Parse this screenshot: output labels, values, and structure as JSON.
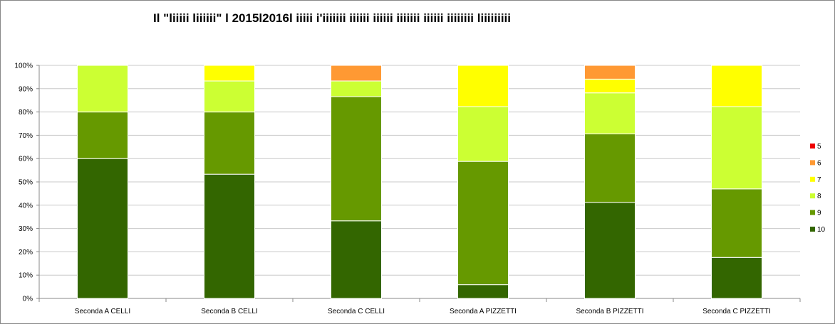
{
  "chart_data": {
    "type": "bar",
    "stacked": true,
    "percent": true,
    "title": "Il \"liiiii liiiiii\" l 2015l2016l iiiii i'iiiiiii iiiiii iiiiii iiiiiii iiiiii iiiiiiii liiiiiiiii",
    "xlabel": "",
    "ylabel": "",
    "ylim": [
      0,
      100
    ],
    "yticks": [
      "0%",
      "10%",
      "20%",
      "30%",
      "40%",
      "50%",
      "60%",
      "70%",
      "80%",
      "90%",
      "100%"
    ],
    "grid": true,
    "legend_position": "right",
    "categories": [
      "Seconda A CELLI",
      "Seconda B CELLI",
      "Seconda C CELLI",
      "Seconda A PIZZETTI",
      "Seconda B PIZZETTI",
      "Seconda C PIZZETTI"
    ],
    "series": [
      {
        "name": "10",
        "color": "#336600",
        "values": [
          60,
          53.3,
          33.3,
          5.9,
          41.2,
          17.6
        ]
      },
      {
        "name": "9",
        "color": "#669900",
        "values": [
          20,
          26.7,
          53.3,
          52.9,
          29.4,
          29.4
        ]
      },
      {
        "name": "8",
        "color": "#ccff33",
        "values": [
          20,
          13.3,
          6.7,
          23.5,
          17.6,
          35.3
        ]
      },
      {
        "name": "7",
        "color": "#ffff00",
        "values": [
          0,
          6.7,
          0,
          17.7,
          5.9,
          17.7
        ]
      },
      {
        "name": "6",
        "color": "#ff9933",
        "values": [
          0,
          0,
          6.7,
          0,
          5.9,
          0
        ]
      },
      {
        "name": "5",
        "color": "#ee0000",
        "values": [
          0,
          0,
          0,
          0,
          0,
          0
        ]
      }
    ]
  }
}
